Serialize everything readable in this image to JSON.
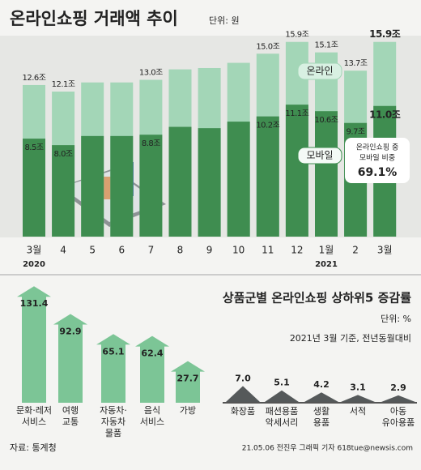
{
  "title": "온라인쇼핑 거래액 추이",
  "unit": "단위: 원",
  "chart_data": [
    {
      "type": "bar",
      "categories": [
        "3월",
        "4",
        "5",
        "6",
        "7",
        "8",
        "9",
        "10",
        "11",
        "12",
        "1월",
        "2",
        "3월"
      ],
      "year_labels": [
        "2020",
        null,
        null,
        null,
        null,
        null,
        null,
        null,
        null,
        null,
        "2021",
        null,
        null
      ],
      "ylim": [
        1,
        17
      ],
      "series": [
        {
          "name": "온라인",
          "color": "#a3d6b7",
          "values": [
            12.6,
            12.1,
            12.8,
            12.8,
            13.0,
            13.8,
            13.9,
            14.3,
            15.0,
            15.9,
            15.1,
            13.7,
            15.9
          ],
          "value_labels": [
            "12.6조",
            "12.1조",
            null,
            null,
            "13.0조",
            null,
            null,
            null,
            "15.0조",
            "15.9조",
            "15.1조",
            "13.7조",
            "15.9조"
          ]
        },
        {
          "name": "모바일",
          "color": "#3f8d50",
          "values": [
            8.5,
            8.0,
            8.7,
            8.7,
            8.8,
            9.4,
            9.3,
            9.8,
            10.2,
            11.1,
            10.6,
            9.7,
            11.0
          ],
          "value_labels": [
            "8.5조",
            "8.0조",
            null,
            null,
            "8.8조",
            null,
            null,
            null,
            "10.2조",
            "11.1조",
            "10.6조",
            "9.7조",
            "11.0조"
          ]
        }
      ],
      "annotation": {
        "text": [
          "온라인쇼핑 중",
          "모바일 비중"
        ],
        "value": 69.1,
        "value_label": "69.1%"
      }
    },
    {
      "type": "arrow",
      "title": "상품군별 온라인쇼핑 상하위5 증감률",
      "unit": "단위: %",
      "note": "2021년 3월 기준, 전년동월대비",
      "color": "#7cc596",
      "ylim": [
        -30,
        135
      ],
      "categories": [
        [
          "문화·레저",
          "서비스"
        ],
        [
          "여행",
          "교통"
        ],
        [
          "자동차·",
          "자동차",
          "물품"
        ],
        [
          "음식",
          "서비스"
        ],
        [
          "가방"
        ]
      ],
      "values": [
        131.4,
        92.9,
        65.1,
        62.4,
        27.7
      ]
    },
    {
      "type": "triangle",
      "color": "#55595a",
      "ylim": [
        0,
        10
      ],
      "categories": [
        [
          "화장품"
        ],
        [
          "패션용품",
          "악세서리"
        ],
        [
          "생활",
          "용품"
        ],
        [
          "서적"
        ],
        [
          "아동",
          "유아용품"
        ]
      ],
      "values": [
        7.0,
        5.1,
        4.2,
        3.1,
        2.9
      ],
      "value_labels": [
        "7.0",
        "5.1",
        "4.2",
        "3.1",
        "2.9"
      ]
    }
  ],
  "footer": {
    "source": "자료: 통계청",
    "credit": "21.05.06 전진우 그래픽 기자 618tue@newsis.com"
  }
}
